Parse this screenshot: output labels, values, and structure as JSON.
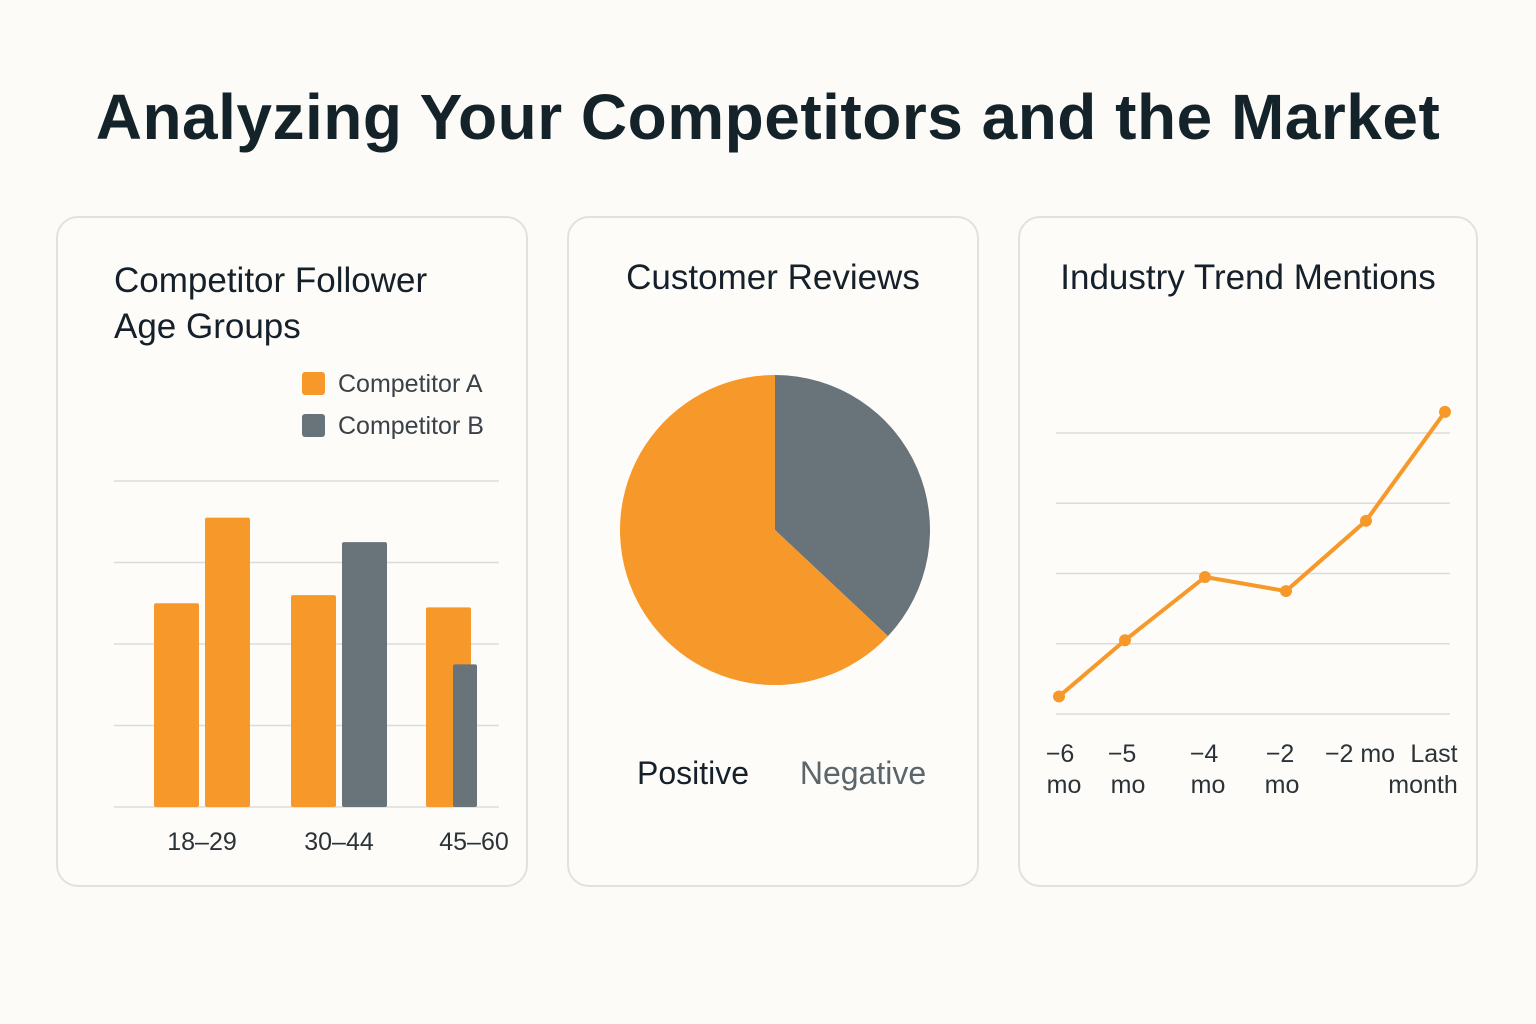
{
  "title": "Analyzing Your Competitors and the Market",
  "colors": {
    "orange": "#f7992a",
    "gray": "#69737a",
    "grid": "#dcdcdc"
  },
  "chart_data": [
    {
      "type": "bar",
      "title_line1": "Competitor Follower",
      "title_line2": "Age Groups",
      "legend": [
        "Competitor A",
        "Competitor B"
      ],
      "legend_placement": "top-right",
      "categories": [
        "18–29",
        "30–44",
        "45–60"
      ],
      "series": [
        {
          "name": "Competitor A",
          "values": [
            2.5,
            2.6,
            2.45
          ]
        },
        {
          "name": "Competitor B",
          "values": [
            3.55,
            3.25,
            1.75
          ]
        }
      ],
      "bar_colors": [
        [
          "#f7992a",
          "#f7992a"
        ],
        [
          "#f7992a",
          "#69737a"
        ],
        [
          "#f7992a",
          "#69737a"
        ]
      ],
      "ylim": [
        0,
        4
      ],
      "grid": true
    },
    {
      "type": "pie",
      "title": "Customer Reviews",
      "labels": [
        "Positive",
        "Negative"
      ],
      "values": [
        63,
        37
      ]
    },
    {
      "type": "line",
      "title": "Industry Trend Mentions",
      "x_labels": [
        [
          "−6",
          "mo"
        ],
        [
          "−5",
          "mo"
        ],
        [
          "−4",
          "mo"
        ],
        [
          "−2",
          "mo"
        ],
        [
          "−2 mo",
          ""
        ],
        [
          "Last",
          "month"
        ]
      ],
      "values": [
        0.25,
        1.05,
        1.95,
        1.75,
        2.75,
        4.3
      ],
      "ylim": [
        0,
        4
      ],
      "grid": true
    }
  ]
}
